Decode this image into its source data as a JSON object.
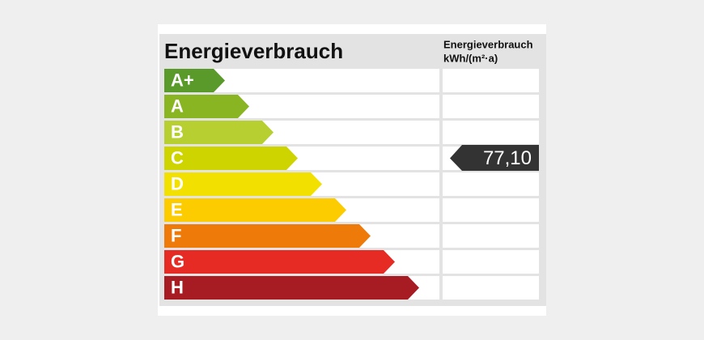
{
  "header": {
    "title": "Energieverbrauch",
    "column_title": "Energieverbrauch",
    "column_unit": "kWh/(m²·a)"
  },
  "classes": [
    {
      "label": "A+",
      "color": "#5a9a2a"
    },
    {
      "label": "A",
      "color": "#8ab523"
    },
    {
      "label": "B",
      "color": "#b7cf30"
    },
    {
      "label": "C",
      "color": "#cdd400",
      "value": "77,10"
    },
    {
      "label": "D",
      "color": "#f2e100"
    },
    {
      "label": "E",
      "color": "#fccc00"
    },
    {
      "label": "F",
      "color": "#ee7a0a"
    },
    {
      "label": "G",
      "color": "#e52b24"
    },
    {
      "label": "H",
      "color": "#a71b22"
    }
  ]
}
